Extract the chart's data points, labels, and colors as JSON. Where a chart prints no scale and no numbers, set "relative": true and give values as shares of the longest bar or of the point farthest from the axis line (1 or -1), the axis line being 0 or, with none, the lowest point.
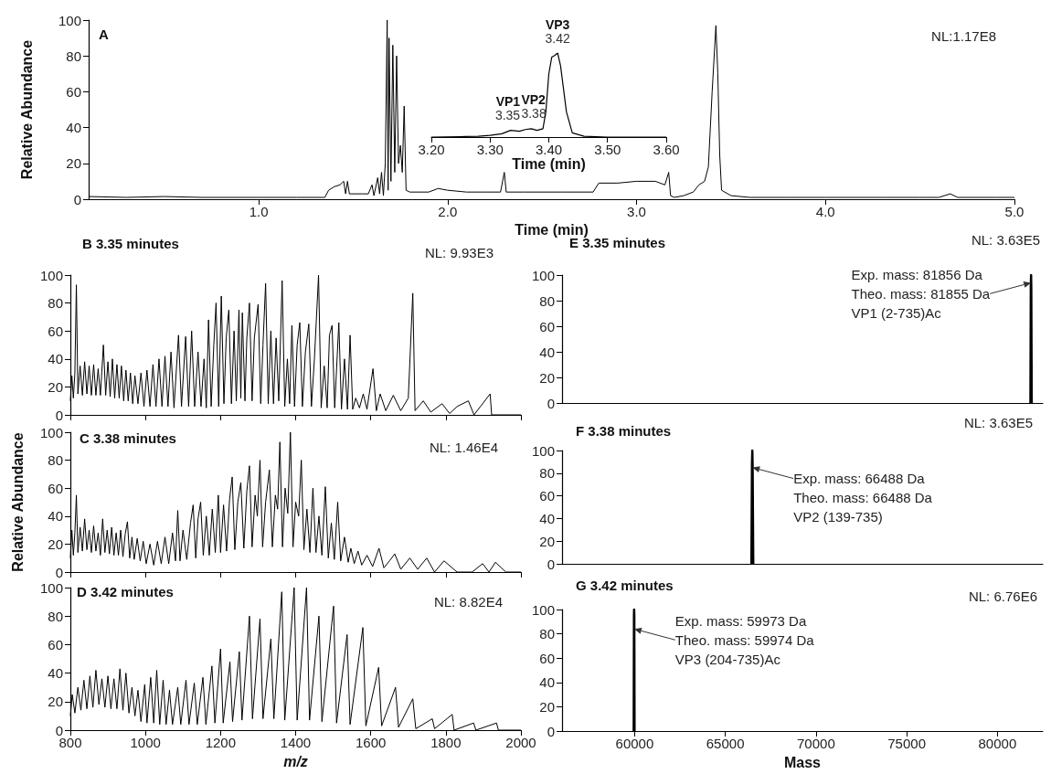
{
  "chart_data": [
    {
      "type": "line",
      "title": "A",
      "xlabel": "Time (min)",
      "ylabel": "Relative Abundance",
      "color": "#000000",
      "marker": "none",
      "xlim": [
        0.1,
        5.0
      ],
      "xticks": [
        {
          "value": 1,
          "label": "1.0"
        },
        {
          "value": 2,
          "label": "2.0"
        },
        {
          "value": 3,
          "label": "3.0"
        },
        {
          "value": 4,
          "label": "4.0"
        },
        {
          "value": 5,
          "label": "5.0"
        }
      ],
      "ylim": [
        0,
        100
      ],
      "yticks": [
        0,
        20,
        40,
        60,
        80,
        100
      ],
      "x": [
        0.1,
        0.3,
        0.5,
        0.7,
        1.0,
        1.2,
        1.35,
        1.37,
        1.4,
        1.43,
        1.45,
        1.46,
        1.47,
        1.48,
        1.55,
        1.58,
        1.6,
        1.61,
        1.63,
        1.64,
        1.65,
        1.66,
        1.67,
        1.68,
        1.685,
        1.69,
        1.7,
        1.71,
        1.72,
        1.73,
        1.74,
        1.75,
        1.76,
        1.77,
        1.78,
        1.8,
        1.9,
        1.95,
        2.0,
        2.1,
        2.2,
        2.28,
        2.3,
        2.31,
        2.4,
        2.6,
        2.77,
        2.8,
        2.9,
        3.0,
        3.1,
        3.15,
        3.17,
        3.18,
        3.2,
        3.25,
        3.3,
        3.33,
        3.36,
        3.38,
        3.4,
        3.42,
        3.43,
        3.44,
        3.45,
        3.5,
        3.6,
        3.8,
        4.0,
        4.3,
        4.5,
        4.6,
        4.66,
        4.7,
        4.9,
        5.0
      ],
      "values": [
        1.5,
        1,
        1.5,
        1,
        1,
        1,
        1,
        5,
        7,
        8,
        10,
        3,
        10,
        3,
        3,
        3,
        8,
        2,
        12,
        3,
        15,
        2,
        20,
        100,
        5,
        90,
        10,
        86,
        15,
        80,
        20,
        30,
        15,
        52,
        5,
        4,
        4,
        6,
        5,
        4,
        4,
        4,
        15,
        4,
        4,
        4,
        4,
        9,
        9,
        10,
        10,
        8,
        15,
        2,
        1,
        2,
        4,
        8,
        10,
        18,
        60,
        97,
        70,
        25,
        5,
        2,
        1,
        1,
        1,
        1,
        1,
        1,
        3,
        1,
        1,
        1
      ],
      "annotations": [
        "NL:1.17E8"
      ]
    },
    {
      "type": "line",
      "xlabel": "Time (min)",
      "color": "#000000",
      "marker": "none",
      "relative": true,
      "xlim": [
        3.2,
        3.6
      ],
      "xticks": [
        {
          "value": 3.2,
          "label": "3.20"
        },
        {
          "value": 3.3,
          "label": "3.30"
        },
        {
          "value": 3.4,
          "label": "3.40"
        },
        {
          "value": 3.5,
          "label": "3.50"
        },
        {
          "value": 3.6,
          "label": "3.60"
        }
      ],
      "x": [
        3.2,
        3.25,
        3.28,
        3.3,
        3.32,
        3.335,
        3.35,
        3.36,
        3.37,
        3.38,
        3.39,
        3.395,
        3.4,
        3.405,
        3.41,
        3.415,
        3.42,
        3.43,
        3.44,
        3.46,
        3.5,
        3.55,
        3.6
      ],
      "values": [
        0,
        0.005,
        0.01,
        0.02,
        0.04,
        0.08,
        0.07,
        0.09,
        0.1,
        0.08,
        0.1,
        0.3,
        0.75,
        0.95,
        0.97,
        1.0,
        0.85,
        0.3,
        0.05,
        0.01,
        0,
        0,
        0
      ],
      "annotations": [
        {
          "text": "VP1\n3.35",
          "x": 3.345,
          "y": 0.08
        },
        {
          "text": "VP2\n3.38",
          "x": 3.375,
          "y": 0.1
        },
        {
          "text": "VP3\n3.42",
          "x": 3.415,
          "y": 1.0
        }
      ]
    },
    {
      "type": "line",
      "title": "B 3.35 minutes",
      "color": "#000000",
      "marker": "none",
      "tick_labels": "y",
      "xlim": [
        800,
        2000
      ],
      "xticks": [
        800,
        1000,
        1200,
        1400,
        1600,
        1800,
        2000
      ],
      "ylim": [
        0,
        100
      ],
      "yticks": [
        0,
        20,
        40,
        60,
        80,
        100
      ],
      "x": [
        800,
        804,
        808,
        812,
        816,
        820,
        826,
        832,
        838,
        844,
        850,
        856,
        862,
        868,
        874,
        880,
        888,
        894,
        900,
        906,
        912,
        918,
        924,
        930,
        936,
        942,
        948,
        954,
        960,
        966,
        972,
        980,
        988,
        996,
        1004,
        1012,
        1020,
        1028,
        1036,
        1044,
        1052,
        1060,
        1068,
        1076,
        1088,
        1096,
        1107,
        1115,
        1123,
        1131,
        1140,
        1148,
        1156,
        1162,
        1168,
        1175,
        1182,
        1188,
        1195,
        1202,
        1209,
        1215,
        1222,
        1229,
        1236,
        1242,
        1249,
        1254,
        1258,
        1265,
        1270,
        1277,
        1284,
        1290,
        1300,
        1307,
        1313,
        1320,
        1327,
        1334,
        1341,
        1348,
        1355,
        1364,
        1371,
        1378,
        1384,
        1390,
        1397,
        1404,
        1411,
        1418,
        1426,
        1435,
        1442,
        1450,
        1461,
        1468,
        1476,
        1484,
        1490,
        1497,
        1504,
        1515,
        1522,
        1530,
        1538,
        1545,
        1552,
        1560,
        1570,
        1580,
        1590,
        1606,
        1615,
        1625,
        1640,
        1660,
        1680,
        1700,
        1712,
        1718,
        1740,
        1760,
        1790,
        1810,
        1830,
        1860,
        1875,
        1918,
        1922,
        2000
      ],
      "values": [
        10,
        28,
        12,
        30,
        93,
        15,
        35,
        14,
        38,
        15,
        35,
        14,
        36,
        14,
        33,
        14,
        50,
        14,
        38,
        13,
        40,
        12,
        36,
        12,
        35,
        10,
        32,
        10,
        30,
        8,
        28,
        8,
        30,
        6,
        32,
        6,
        36,
        6,
        40,
        6,
        42,
        6,
        45,
        5,
        57,
        6,
        56,
        6,
        60,
        6,
        45,
        6,
        40,
        5,
        68,
        6,
        50,
        80,
        6,
        85,
        8,
        55,
        75,
        8,
        60,
        10,
        75,
        12,
        73,
        10,
        55,
        80,
        10,
        55,
        79,
        8,
        50,
        94,
        8,
        60,
        8,
        55,
        10,
        96,
        6,
        40,
        8,
        64,
        6,
        50,
        66,
        6,
        45,
        65,
        6,
        40,
        100,
        5,
        35,
        5,
        57,
        64,
        5,
        66,
        4,
        40,
        4,
        57,
        4,
        12,
        5,
        15,
        4,
        33,
        3,
        15,
        3,
        14,
        3,
        12,
        87,
        3,
        10,
        2,
        8,
        1,
        6,
        10,
        0,
        15,
        0,
        0
      ],
      "annotations": [
        "NL: 9.93E3"
      ]
    },
    {
      "type": "line",
      "title": "C 3.38 minutes",
      "ylabel": "Relative Abundance",
      "color": "#000000",
      "marker": "none",
      "tick_labels": "y",
      "xlim": [
        800,
        2000
      ],
      "xticks": [
        800,
        1000,
        1200,
        1400,
        1600,
        1800,
        2000
      ],
      "ylim": [
        0,
        100
      ],
      "yticks": [
        0,
        20,
        40,
        60,
        80,
        100
      ],
      "x": [
        800,
        804,
        808,
        812,
        816,
        820,
        826,
        832,
        838,
        844,
        850,
        856,
        862,
        868,
        874,
        880,
        886,
        892,
        898,
        904,
        910,
        916,
        922,
        928,
        934,
        940,
        946,
        952,
        958,
        964,
        970,
        978,
        986,
        994,
        1002,
        1012,
        1022,
        1032,
        1042,
        1052,
        1062,
        1072,
        1080,
        1086,
        1092,
        1100,
        1110,
        1120,
        1127,
        1134,
        1140,
        1147,
        1154,
        1162,
        1170,
        1178,
        1186,
        1194,
        1200,
        1208,
        1216,
        1224,
        1231,
        1238,
        1246,
        1254,
        1262,
        1270,
        1277,
        1284,
        1292,
        1298,
        1305,
        1312,
        1320,
        1330,
        1338,
        1346,
        1352,
        1358,
        1365,
        1372,
        1379,
        1386,
        1393,
        1400,
        1408,
        1415,
        1422,
        1430,
        1438,
        1446,
        1454,
        1462,
        1470,
        1479,
        1487,
        1495,
        1503,
        1512,
        1520,
        1530,
        1540,
        1547,
        1556,
        1566,
        1576,
        1590,
        1605,
        1622,
        1635,
        1650,
        1664,
        1680,
        1704,
        1725,
        1749,
        1770,
        1795,
        1830,
        1870,
        1898,
        1915,
        1932,
        1960,
        2000
      ],
      "values": [
        10,
        30,
        12,
        28,
        55,
        14,
        32,
        15,
        38,
        16,
        30,
        14,
        33,
        15,
        28,
        12,
        38,
        14,
        30,
        13,
        32,
        12,
        28,
        12,
        30,
        11,
        27,
        36,
        10,
        25,
        9,
        24,
        8,
        22,
        6,
        20,
        5,
        22,
        6,
        25,
        6,
        28,
        8,
        44,
        8,
        30,
        9,
        35,
        48,
        10,
        38,
        50,
        12,
        40,
        12,
        45,
        14,
        55,
        14,
        48,
        15,
        52,
        68,
        16,
        50,
        64,
        17,
        58,
        76,
        18,
        55,
        40,
        80,
        18,
        50,
        73,
        18,
        55,
        45,
        93,
        18,
        60,
        42,
        100,
        18,
        50,
        40,
        80,
        16,
        45,
        14,
        60,
        14,
        40,
        12,
        61,
        10,
        35,
        9,
        50,
        8,
        25,
        7,
        17,
        6,
        15,
        5,
        12,
        4,
        17,
        3,
        8,
        13,
        2,
        10,
        2,
        10,
        0,
        8,
        0,
        0,
        6,
        0,
        7,
        0,
        0
      ],
      "annotations": [
        "NL: 1.46E4"
      ]
    },
    {
      "type": "line",
      "title": "D 3.42 minutes",
      "xlabel": "m/z",
      "color": "#000000",
      "marker": "none",
      "xlim": [
        800,
        2000
      ],
      "xticks": [
        800,
        1000,
        1200,
        1400,
        1600,
        1800,
        2000
      ],
      "ylim": [
        0,
        100
      ],
      "yticks": [
        0,
        20,
        40,
        60,
        80,
        100
      ],
      "x": [
        800,
        805,
        812,
        820,
        828,
        836,
        844,
        852,
        860,
        868,
        876,
        884,
        892,
        900,
        908,
        916,
        924,
        932,
        940,
        948,
        956,
        964,
        972,
        980,
        988,
        998,
        1004,
        1014,
        1022,
        1030,
        1038,
        1047,
        1055,
        1064,
        1072,
        1086,
        1094,
        1108,
        1116,
        1130,
        1138,
        1153,
        1161,
        1177,
        1185,
        1200,
        1207,
        1225,
        1232,
        1250,
        1257,
        1277,
        1285,
        1305,
        1313,
        1334,
        1342,
        1363,
        1371,
        1396,
        1404,
        1429,
        1437,
        1462,
        1470,
        1501,
        1509,
        1537,
        1545,
        1579,
        1587,
        1621,
        1629,
        1666,
        1674,
        1712,
        1720,
        1764,
        1770,
        1817,
        1822,
        1874,
        1880,
        1935,
        1940,
        2000
      ],
      "values": [
        10,
        25,
        12,
        30,
        14,
        35,
        15,
        38,
        16,
        42,
        18,
        36,
        16,
        38,
        15,
        36,
        15,
        43,
        14,
        40,
        12,
        30,
        10,
        28,
        6,
        32,
        5,
        37,
        5,
        42,
        4,
        35,
        4,
        28,
        4,
        30,
        4,
        35,
        4,
        33,
        4,
        37,
        4,
        45,
        5,
        57,
        5,
        48,
        6,
        55,
        7,
        80,
        8,
        78,
        8,
        64,
        8,
        97,
        7,
        100,
        7,
        100,
        7,
        80,
        6,
        87,
        5,
        67,
        4,
        72,
        3,
        44,
        3,
        30,
        2,
        22,
        1,
        8,
        1,
        11,
        0,
        5,
        0,
        5,
        0,
        0
      ],
      "annotations": [
        "NL: 8.82E4"
      ]
    },
    {
      "type": "line",
      "title": "E 3.35 minutes",
      "color": "#000000",
      "marker": "none",
      "tick_labels": "y",
      "xlim": [
        56000,
        82500
      ],
      "ylim": [
        0,
        100
      ],
      "yticks": [
        0,
        20,
        40,
        60,
        80,
        100
      ],
      "x": [
        81820,
        81840,
        81856,
        81866,
        81890
      ],
      "values": [
        0,
        92,
        100,
        90,
        0
      ],
      "annotations": [
        "NL: 3.63E5",
        {
          "text": "Exp. mass: 81856 Da\nTheo. mass: 81855 Da\nVP1 (2-735)Ac",
          "x": 81856,
          "y": 94
        }
      ]
    },
    {
      "type": "line",
      "title": "F 3.38 minutes",
      "color": "#000000",
      "marker": "none",
      "tick_labels": "y",
      "xlim": [
        56000,
        82500
      ],
      "ylim": [
        0,
        100
      ],
      "yticks": [
        0,
        20,
        40,
        60,
        80,
        100
      ],
      "x": [
        66440,
        66470,
        66488,
        66505,
        66540
      ],
      "values": [
        0,
        88,
        100,
        86,
        0
      ],
      "annotations": [
        "NL: 3.63E5",
        {
          "text": "Exp. mass: 66488 Da\nTheo. mass: 66488 Da\nVP2 (139-735)",
          "x": 66488,
          "y": 85
        }
      ]
    },
    {
      "type": "line",
      "title": "G 3.42 minutes",
      "xlabel": "Mass",
      "color": "#000000",
      "marker": "none",
      "xlim": [
        56000,
        82500
      ],
      "xticks": [
        60000,
        65000,
        70000,
        75000,
        80000
      ],
      "ylim": [
        0,
        100
      ],
      "yticks": [
        0,
        20,
        40,
        60,
        80,
        100
      ],
      "x": [
        59950,
        59965,
        59973,
        59982,
        59995
      ],
      "values": [
        0,
        95,
        100,
        95,
        0
      ],
      "annotations": [
        "NL: 6.76E6",
        {
          "text": "Exp. mass: 59973 Da\nTheo. mass: 59974 Da\nVP3 (204-735)Ac",
          "x": 59973,
          "y": 84
        }
      ]
    }
  ]
}
